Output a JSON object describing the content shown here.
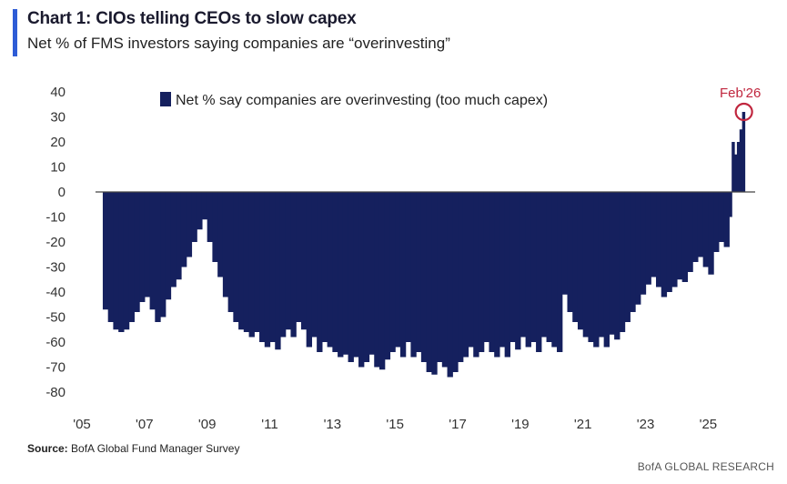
{
  "header": {
    "title": "Chart 1: CIOs telling CEOs to slow capex",
    "subtitle": "Net % of FMS investors saying companies are “overinvesting”"
  },
  "footer": {
    "source_label": "Source:",
    "source_text": "BofA Global Fund Manager Survey",
    "brand": "BofA GLOBAL RESEARCH"
  },
  "colors": {
    "bar": "#15205e",
    "accent": "#2e5cd6",
    "annotation": "#c0263e",
    "zero_line": "#444444"
  },
  "chart_data": {
    "type": "bar",
    "series": [
      {
        "name": "Net % say companies are overinvesting (too much capex)",
        "points": [
          [
            "2005-09",
            -47
          ],
          [
            "2005-11",
            -52
          ],
          [
            "2006-01",
            -55
          ],
          [
            "2006-03",
            -56
          ],
          [
            "2006-05",
            -55
          ],
          [
            "2006-07",
            -52
          ],
          [
            "2006-09",
            -48
          ],
          [
            "2006-11",
            -44
          ],
          [
            "2007-01",
            -42
          ],
          [
            "2007-03",
            -47
          ],
          [
            "2007-05",
            -52
          ],
          [
            "2007-07",
            -50
          ],
          [
            "2007-09",
            -43
          ],
          [
            "2007-11",
            -38
          ],
          [
            "2008-01",
            -35
          ],
          [
            "2008-03",
            -30
          ],
          [
            "2008-05",
            -26
          ],
          [
            "2008-07",
            -20
          ],
          [
            "2008-09",
            -15
          ],
          [
            "2008-11",
            -11
          ],
          [
            "2009-01",
            -20
          ],
          [
            "2009-03",
            -28
          ],
          [
            "2009-05",
            -34
          ],
          [
            "2009-07",
            -42
          ],
          [
            "2009-09",
            -48
          ],
          [
            "2009-11",
            -52
          ],
          [
            "2010-01",
            -55
          ],
          [
            "2010-03",
            -56
          ],
          [
            "2010-05",
            -58
          ],
          [
            "2010-07",
            -56
          ],
          [
            "2010-09",
            -60
          ],
          [
            "2010-11",
            -62
          ],
          [
            "2011-01",
            -60
          ],
          [
            "2011-03",
            -63
          ],
          [
            "2011-05",
            -58
          ],
          [
            "2011-07",
            -55
          ],
          [
            "2011-09",
            -58
          ],
          [
            "2011-11",
            -52
          ],
          [
            "2012-01",
            -55
          ],
          [
            "2012-03",
            -62
          ],
          [
            "2012-05",
            -58
          ],
          [
            "2012-07",
            -64
          ],
          [
            "2012-09",
            -60
          ],
          [
            "2012-11",
            -62
          ],
          [
            "2013-01",
            -64
          ],
          [
            "2013-03",
            -66
          ],
          [
            "2013-05",
            -65
          ],
          [
            "2013-07",
            -68
          ],
          [
            "2013-09",
            -66
          ],
          [
            "2013-11",
            -70
          ],
          [
            "2014-01",
            -68
          ],
          [
            "2014-03",
            -65
          ],
          [
            "2014-05",
            -70
          ],
          [
            "2014-07",
            -71
          ],
          [
            "2014-09",
            -67
          ],
          [
            "2014-11",
            -64
          ],
          [
            "2015-01",
            -62
          ],
          [
            "2015-03",
            -66
          ],
          [
            "2015-05",
            -60
          ],
          [
            "2015-07",
            -66
          ],
          [
            "2015-09",
            -64
          ],
          [
            "2015-11",
            -68
          ],
          [
            "2016-01",
            -72
          ],
          [
            "2016-03",
            -73
          ],
          [
            "2016-05",
            -68
          ],
          [
            "2016-07",
            -70
          ],
          [
            "2016-09",
            -74
          ],
          [
            "2016-11",
            -72
          ],
          [
            "2017-01",
            -68
          ],
          [
            "2017-03",
            -66
          ],
          [
            "2017-05",
            -62
          ],
          [
            "2017-07",
            -66
          ],
          [
            "2017-09",
            -64
          ],
          [
            "2017-11",
            -60
          ],
          [
            "2018-01",
            -64
          ],
          [
            "2018-03",
            -66
          ],
          [
            "2018-05",
            -62
          ],
          [
            "2018-07",
            -66
          ],
          [
            "2018-09",
            -60
          ],
          [
            "2018-11",
            -63
          ],
          [
            "2019-01",
            -58
          ],
          [
            "2019-03",
            -62
          ],
          [
            "2019-05",
            -60
          ],
          [
            "2019-07",
            -64
          ],
          [
            "2019-09",
            -58
          ],
          [
            "2019-11",
            -60
          ],
          [
            "2020-01",
            -62
          ],
          [
            "2020-03",
            -64
          ],
          [
            "2020-05",
            -41
          ],
          [
            "2020-07",
            -48
          ],
          [
            "2020-09",
            -52
          ],
          [
            "2020-11",
            -55
          ],
          [
            "2021-01",
            -58
          ],
          [
            "2021-03",
            -60
          ],
          [
            "2021-05",
            -62
          ],
          [
            "2021-07",
            -58
          ],
          [
            "2021-09",
            -62
          ],
          [
            "2021-11",
            -57
          ],
          [
            "2022-01",
            -59
          ],
          [
            "2022-03",
            -56
          ],
          [
            "2022-05",
            -52
          ],
          [
            "2022-07",
            -48
          ],
          [
            "2022-09",
            -45
          ],
          [
            "2022-11",
            -41
          ],
          [
            "2023-01",
            -37
          ],
          [
            "2023-03",
            -34
          ],
          [
            "2023-05",
            -38
          ],
          [
            "2023-07",
            -42
          ],
          [
            "2023-09",
            -40
          ],
          [
            "2023-11",
            -38
          ],
          [
            "2024-01",
            -35
          ],
          [
            "2024-03",
            -36
          ],
          [
            "2024-05",
            -32
          ],
          [
            "2024-07",
            -28
          ],
          [
            "2024-09",
            -26
          ],
          [
            "2024-11",
            -30
          ],
          [
            "2025-01",
            -33
          ],
          [
            "2025-03",
            -24
          ],
          [
            "2025-05",
            -20
          ],
          [
            "2025-07",
            -22
          ],
          [
            "2025-09",
            -10
          ],
          [
            "2025-10",
            20
          ],
          [
            "2025-11",
            15
          ],
          [
            "2025-12",
            20
          ],
          [
            "2026-01",
            25
          ],
          [
            "2026-02",
            32
          ]
        ]
      }
    ],
    "x_ticks": [
      "'05",
      "'07",
      "'09",
      "'11",
      "'13",
      "'15",
      "'17",
      "'19",
      "'21",
      "'23",
      "'25"
    ],
    "x_tick_years": [
      2005,
      2007,
      2009,
      2011,
      2013,
      2015,
      2017,
      2019,
      2021,
      2023,
      2025
    ],
    "x_range": [
      2005,
      2026.5
    ],
    "y_ticks": [
      "40",
      "30",
      "20",
      "10",
      "0",
      "-10",
      "-20",
      "-30",
      "-40",
      "-50",
      "-60",
      "-70",
      "-80"
    ],
    "ylim": [
      -80,
      40
    ],
    "grid": false,
    "legend_position": "top-center",
    "annotation": {
      "label": "Feb'26",
      "x": "2026-02",
      "y": 32
    }
  }
}
